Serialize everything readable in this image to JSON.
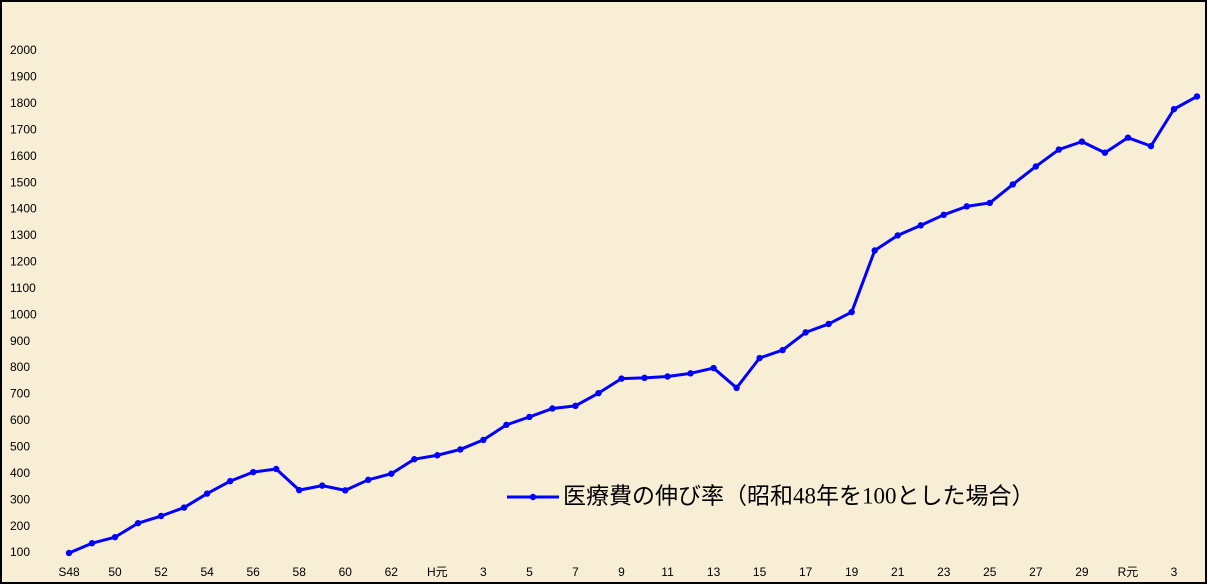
{
  "chart_data": {
    "type": "line",
    "categories": [
      "S48",
      null,
      "50",
      null,
      "52",
      null,
      "54",
      null,
      "56",
      null,
      "58",
      null,
      "60",
      null,
      "62",
      null,
      "H元",
      null,
      "3",
      null,
      "5",
      null,
      "7",
      null,
      "9",
      null,
      "11",
      null,
      "13",
      null,
      "15",
      null,
      "17",
      null,
      "19",
      null,
      "21",
      null,
      "23",
      null,
      "25",
      null,
      "27",
      null,
      "29",
      null,
      "R元",
      null,
      "3",
      null
    ],
    "series": [
      {
        "name": "医療費の伸び率（昭和48年を100とした場合）",
        "color": "#0000ff",
        "values": [
          100,
          137,
          160,
          213,
          240,
          272,
          325,
          372,
          406,
          418,
          338,
          355,
          337,
          377,
          400,
          455,
          470,
          492,
          528,
          585,
          615,
          647,
          657,
          705,
          760,
          763,
          768,
          780,
          800,
          725,
          838,
          868,
          935,
          967,
          1012,
          1245,
          1302,
          1340,
          1380,
          1412,
          1425,
          1495,
          1563,
          1627,
          1657,
          1615,
          1672,
          1640,
          1780,
          1828
        ]
      }
    ],
    "ylim": [
      100,
      2000
    ],
    "yticks": [
      100,
      200,
      300,
      400,
      500,
      600,
      700,
      800,
      900,
      1000,
      1100,
      1200,
      1300,
      1400,
      1500,
      1600,
      1700,
      1800,
      1900,
      2000
    ],
    "legend": "lower right",
    "grid": false
  }
}
